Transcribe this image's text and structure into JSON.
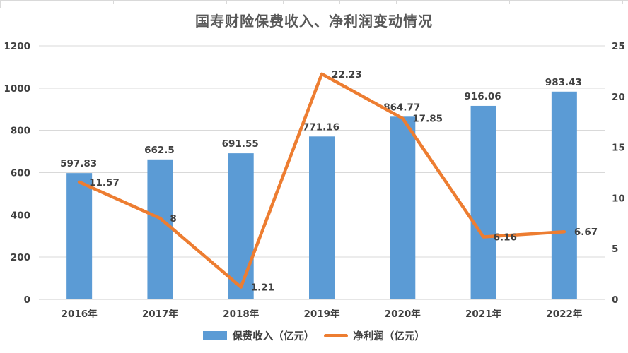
{
  "page": {
    "background": "#ffffff"
  },
  "chart_data": {
    "type": "bar",
    "subtype": "bar-line-combo",
    "title": "国寿财险保费收入、净利润变动情况",
    "categories": [
      "2016年",
      "2017年",
      "2018年",
      "2019年",
      "2020年",
      "2021年",
      "2022年"
    ],
    "series": [
      {
        "name": "保费收入（亿元）",
        "type": "bar",
        "axis": "left",
        "color": "#5B9BD5",
        "values": [
          597.83,
          662.5,
          691.55,
          771.16,
          864.77,
          916.06,
          983.43
        ],
        "labels": [
          "597.83",
          "662.5",
          "691.55",
          "771.16",
          "864.77",
          "916.06",
          "983.43"
        ]
      },
      {
        "name": "净利润（亿元）",
        "type": "line",
        "axis": "right",
        "color": "#ED7D31",
        "values": [
          11.57,
          8,
          1.21,
          22.23,
          17.85,
          6.16,
          6.67
        ],
        "labels": [
          "11.57",
          "8",
          "1.21",
          "22.23",
          "17.85",
          "6.16",
          "6.67"
        ]
      }
    ],
    "left_axis": {
      "min": 0,
      "max": 1200,
      "step": 200,
      "ticks": [
        "0",
        "200",
        "400",
        "600",
        "800",
        "1000",
        "1200"
      ]
    },
    "right_axis": {
      "min": 0,
      "max": 25,
      "step": 5,
      "ticks": [
        "0",
        "5",
        "10",
        "15",
        "20",
        "25"
      ]
    },
    "grid": true,
    "legend_position": "bottom"
  },
  "colors": {
    "bar": "#5B9BD5",
    "line": "#ED7D31",
    "gridline": "#D9D9D9",
    "axis_line": "#CCCCCC",
    "label_text": "#404040",
    "title_text": "#595959"
  }
}
